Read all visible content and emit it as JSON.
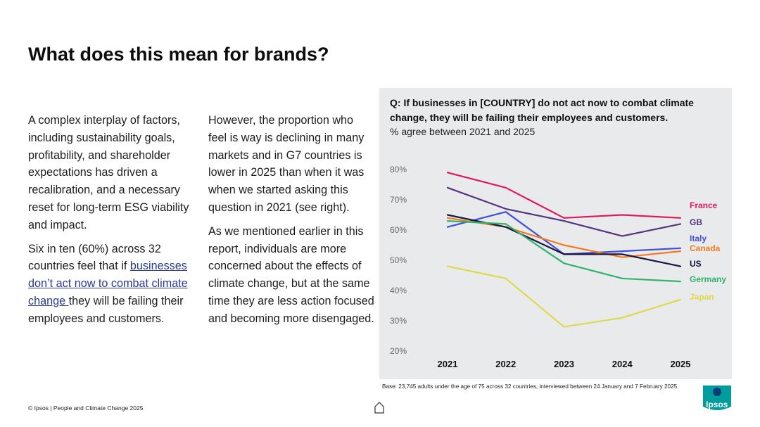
{
  "page": {
    "title": "What does this mean for brands?",
    "col1": {
      "p1": "A complex interplay of factors, including sustainability goals, profitability, and shareholder expectations has driven a recalibration, and a necessary reset for long-term ESG viability and impact.",
      "p2_before": "Six in ten (60%) across 32 countries feel that if ",
      "p2_link": "businesses don’t act now to combat climate change ",
      "p2_after": "they will be failing their employees and customers."
    },
    "col2": {
      "p1": "However, the proportion who feel is way is declining in many markets and in G7 countries is lower in 2025 than when it was when we started asking this question in 2021 (see right).",
      "p2": "As we mentioned earlier in this report, individuals are more concerned about the effects of climate change, but at the same time they are less action focused and becoming more disengaged."
    },
    "footer": "© Ipsos | People and Climate Change 2025",
    "logo": "Ipsos",
    "home_icon": "home-icon"
  },
  "chart_data": {
    "type": "line",
    "title": "Q: If businesses in [COUNTRY] do not act now to combat climate change, they will be failing their employees and customers.",
    "subtitle": "% agree between 2021 and 2025",
    "base_note": "Base: 23,745 adults under the age of 75 across 32 countries, interviewed between 24 January and 7 February 2025.",
    "x": [
      "2021",
      "2022",
      "2023",
      "2024",
      "2025"
    ],
    "ylim": [
      20,
      80
    ],
    "yticks": [
      20,
      30,
      40,
      50,
      60,
      70,
      80
    ],
    "ytick_labels": [
      "20%",
      "30%",
      "40%",
      "50%",
      "60%",
      "70%",
      "80%"
    ],
    "series": [
      {
        "name": "France",
        "color": "#e0195a",
        "values": [
          79,
          74,
          64,
          65,
          64
        ]
      },
      {
        "name": "GB",
        "color": "#54357e",
        "values": [
          74,
          67,
          63,
          58,
          62
        ]
      },
      {
        "name": "Italy",
        "color": "#4150d6",
        "values": [
          61,
          66,
          52,
          53,
          54
        ]
      },
      {
        "name": "Canada",
        "color": "#f47a20",
        "values": [
          64,
          61,
          55,
          51,
          53
        ]
      },
      {
        "name": "US",
        "color": "#16163f",
        "values": [
          65,
          61,
          52,
          52,
          48
        ]
      },
      {
        "name": "Germany",
        "color": "#2fb36b",
        "values": [
          63,
          62,
          49,
          44,
          43
        ]
      },
      {
        "name": "Japan",
        "color": "#e0d94a",
        "values": [
          48,
          44,
          28,
          31,
          37
        ]
      }
    ]
  }
}
